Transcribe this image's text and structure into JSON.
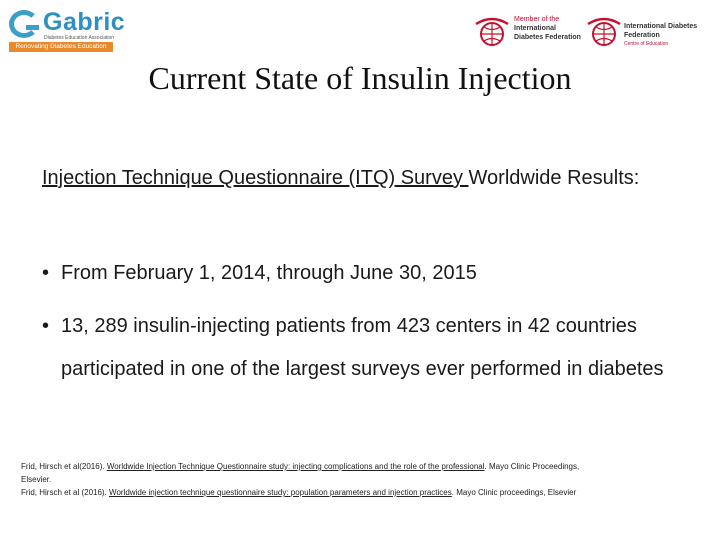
{
  "header": {
    "gabric": {
      "name": "Gabric",
      "subtitle": "Diabetes Education Association",
      "tagline": "Renovating Diabetes Education"
    },
    "idf_member": {
      "line1": "Member of the",
      "line2": "International",
      "line3": "Diabetes Federation"
    },
    "idf_centre": {
      "line1": "International Diabetes",
      "line2": "Federation",
      "line3": "Centre of Education"
    }
  },
  "slide": {
    "title": "Current State of Insulin Injection",
    "lead_underlined": "Injection Technique Questionnaire (ITQ) Survey ",
    "lead_rest": "Worldwide Results:",
    "bullets": [
      "From February 1, 2014, through June 30, 2015",
      "13, 289 insulin-injecting patients from 423 centers in 42 countries participated in one of the largest surveys ever performed in diabetes"
    ]
  },
  "references": [
    {
      "prefix": "Frid, Hirsch et al(2016). ",
      "title": "Worldwide Injection Technique Questionnaire study: injecting complications and the role of the professional",
      "suffix": ". Mayo Clinic Proceedings,",
      "continuation": "Elsevier."
    },
    {
      "prefix": "Frid, Hirsch et al (2016). ",
      "title": "Worldwide injection technique questionnaire study: population parameters and injection practices",
      "suffix": ". Mayo Clinic proceedings, Elsevier"
    }
  ],
  "colors": {
    "gabric_blue": "#2f8fbf",
    "gabric_orange": "#e98a2a",
    "idf_red": "#c8102e"
  }
}
